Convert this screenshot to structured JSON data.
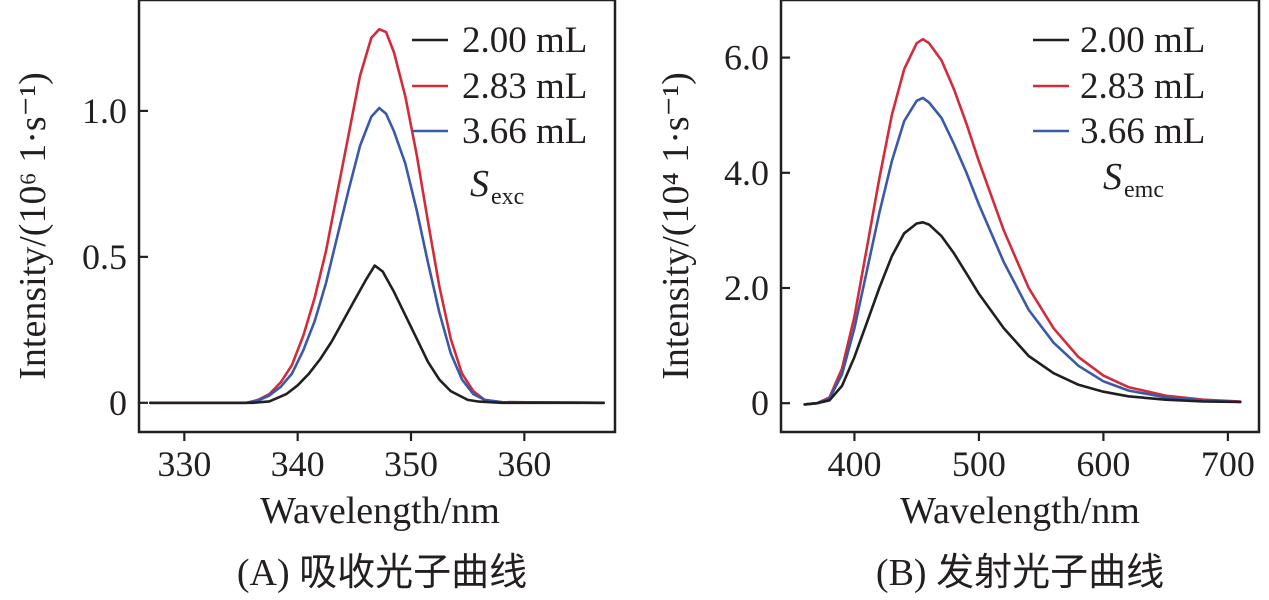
{
  "colors": {
    "black": "#231f20",
    "red": "#d22b3a",
    "blue": "#3a5aa8"
  },
  "chart_data": [
    {
      "type": "line",
      "panel": "A",
      "caption": "(A) 吸收光子曲线",
      "xlabel": "Wavelength/nm",
      "ylabel": "Intensity/(10⁶ 1·s⁻¹)",
      "xlim": [
        326,
        368
      ],
      "ylim": [
        -0.1,
        1.38
      ],
      "xticks": [
        330,
        340,
        350,
        360
      ],
      "xtick_labels": [
        "330",
        "340",
        "350",
        "360"
      ],
      "yticks": [
        0,
        0.5,
        1.0
      ],
      "ytick_labels": [
        "0",
        "0.5",
        "1.0"
      ],
      "annotation": {
        "symbol": "S",
        "subscript": "exc"
      },
      "series": [
        {
          "name": "2.00 mL",
          "color": "#231f20",
          "x": [
            327,
            336,
            337.5,
            339,
            340,
            341,
            342,
            343,
            344,
            345,
            346,
            346.8,
            347.5,
            348.5,
            349.5,
            350.5,
            351.5,
            352.5,
            353.5,
            355,
            356,
            358,
            367
          ],
          "y": [
            0,
            0,
            0.005,
            0.03,
            0.06,
            0.1,
            0.15,
            0.21,
            0.28,
            0.35,
            0.42,
            0.47,
            0.45,
            0.38,
            0.3,
            0.22,
            0.14,
            0.08,
            0.04,
            0.01,
            0.004,
            0,
            0
          ]
        },
        {
          "name": "2.83 mL",
          "color": "#d22b3a",
          "x": [
            327,
            335.5,
            336.5,
            337.5,
            338.5,
            339.5,
            340.5,
            341.5,
            342.5,
            343.5,
            344.5,
            345.5,
            346.5,
            347.2,
            347.8,
            348.5,
            349.5,
            350.5,
            351.5,
            352.5,
            353.5,
            354.5,
            355.5,
            356.5,
            358,
            367
          ],
          "y": [
            0,
            0,
            0.01,
            0.03,
            0.07,
            0.13,
            0.23,
            0.36,
            0.52,
            0.72,
            0.92,
            1.12,
            1.25,
            1.28,
            1.27,
            1.2,
            1.05,
            0.85,
            0.62,
            0.4,
            0.22,
            0.1,
            0.04,
            0.01,
            0.002,
            0
          ]
        },
        {
          "name": "3.66 mL",
          "color": "#3a5aa8",
          "x": [
            327,
            335.5,
            336.5,
            337.5,
            338.5,
            339.5,
            340.5,
            341.5,
            342.5,
            343.5,
            344.5,
            345.5,
            346.5,
            347.2,
            347.8,
            348.5,
            349.5,
            350.5,
            351.5,
            352.5,
            353.5,
            354.5,
            355.5,
            356.5,
            358,
            367
          ],
          "y": [
            0,
            0,
            0.008,
            0.025,
            0.055,
            0.1,
            0.18,
            0.28,
            0.41,
            0.57,
            0.73,
            0.88,
            0.98,
            1.01,
            0.99,
            0.93,
            0.82,
            0.66,
            0.48,
            0.31,
            0.17,
            0.08,
            0.03,
            0.01,
            0.002,
            0
          ]
        }
      ]
    },
    {
      "type": "line",
      "panel": "B",
      "caption": "(B) 发射光子曲线",
      "xlabel": "Wavelength/nm",
      "ylabel": "Intensity/(10⁴ 1·s⁻¹)",
      "xlim": [
        341,
        725
      ],
      "ylim": [
        -0.5,
        7.0
      ],
      "xticks": [
        400,
        500,
        600,
        700
      ],
      "xtick_labels": [
        "400",
        "500",
        "600",
        "700"
      ],
      "yticks": [
        0,
        2.0,
        4.0,
        6.0
      ],
      "ytick_labels": [
        "0",
        "2.0",
        "4.0",
        "6.0"
      ],
      "annotation": {
        "symbol": "S",
        "subscript": "emc"
      },
      "series": [
        {
          "name": "2.00 mL",
          "color": "#231f20",
          "x": [
            360,
            370,
            380,
            390,
            400,
            410,
            420,
            430,
            440,
            450,
            455,
            460,
            470,
            480,
            490,
            500,
            520,
            540,
            560,
            580,
            600,
            620,
            650,
            680,
            710
          ],
          "y": [
            -0.02,
            0.0,
            0.05,
            0.3,
            0.8,
            1.4,
            2.0,
            2.55,
            2.95,
            3.12,
            3.14,
            3.1,
            2.9,
            2.6,
            2.25,
            1.9,
            1.3,
            0.82,
            0.52,
            0.32,
            0.2,
            0.12,
            0.06,
            0.03,
            0.02
          ]
        },
        {
          "name": "2.83 mL",
          "color": "#d22b3a",
          "x": [
            360,
            370,
            380,
            390,
            400,
            410,
            420,
            430,
            440,
            450,
            455,
            460,
            470,
            480,
            490,
            500,
            520,
            540,
            560,
            580,
            600,
            620,
            650,
            680,
            710
          ],
          "y": [
            -0.02,
            0.0,
            0.1,
            0.6,
            1.5,
            2.7,
            3.9,
            5.0,
            5.8,
            6.25,
            6.32,
            6.25,
            5.95,
            5.45,
            4.85,
            4.2,
            3.0,
            2.0,
            1.3,
            0.8,
            0.48,
            0.28,
            0.13,
            0.06,
            0.03
          ]
        },
        {
          "name": "3.66 mL",
          "color": "#3a5aa8",
          "x": [
            360,
            370,
            380,
            390,
            400,
            410,
            420,
            430,
            440,
            450,
            455,
            460,
            470,
            480,
            490,
            500,
            520,
            540,
            560,
            580,
            600,
            620,
            650,
            680,
            710
          ],
          "y": [
            -0.02,
            0.0,
            0.08,
            0.5,
            1.3,
            2.3,
            3.3,
            4.2,
            4.9,
            5.25,
            5.3,
            5.22,
            4.95,
            4.5,
            4.0,
            3.45,
            2.45,
            1.62,
            1.05,
            0.65,
            0.38,
            0.22,
            0.1,
            0.05,
            0.02
          ]
        }
      ]
    }
  ]
}
